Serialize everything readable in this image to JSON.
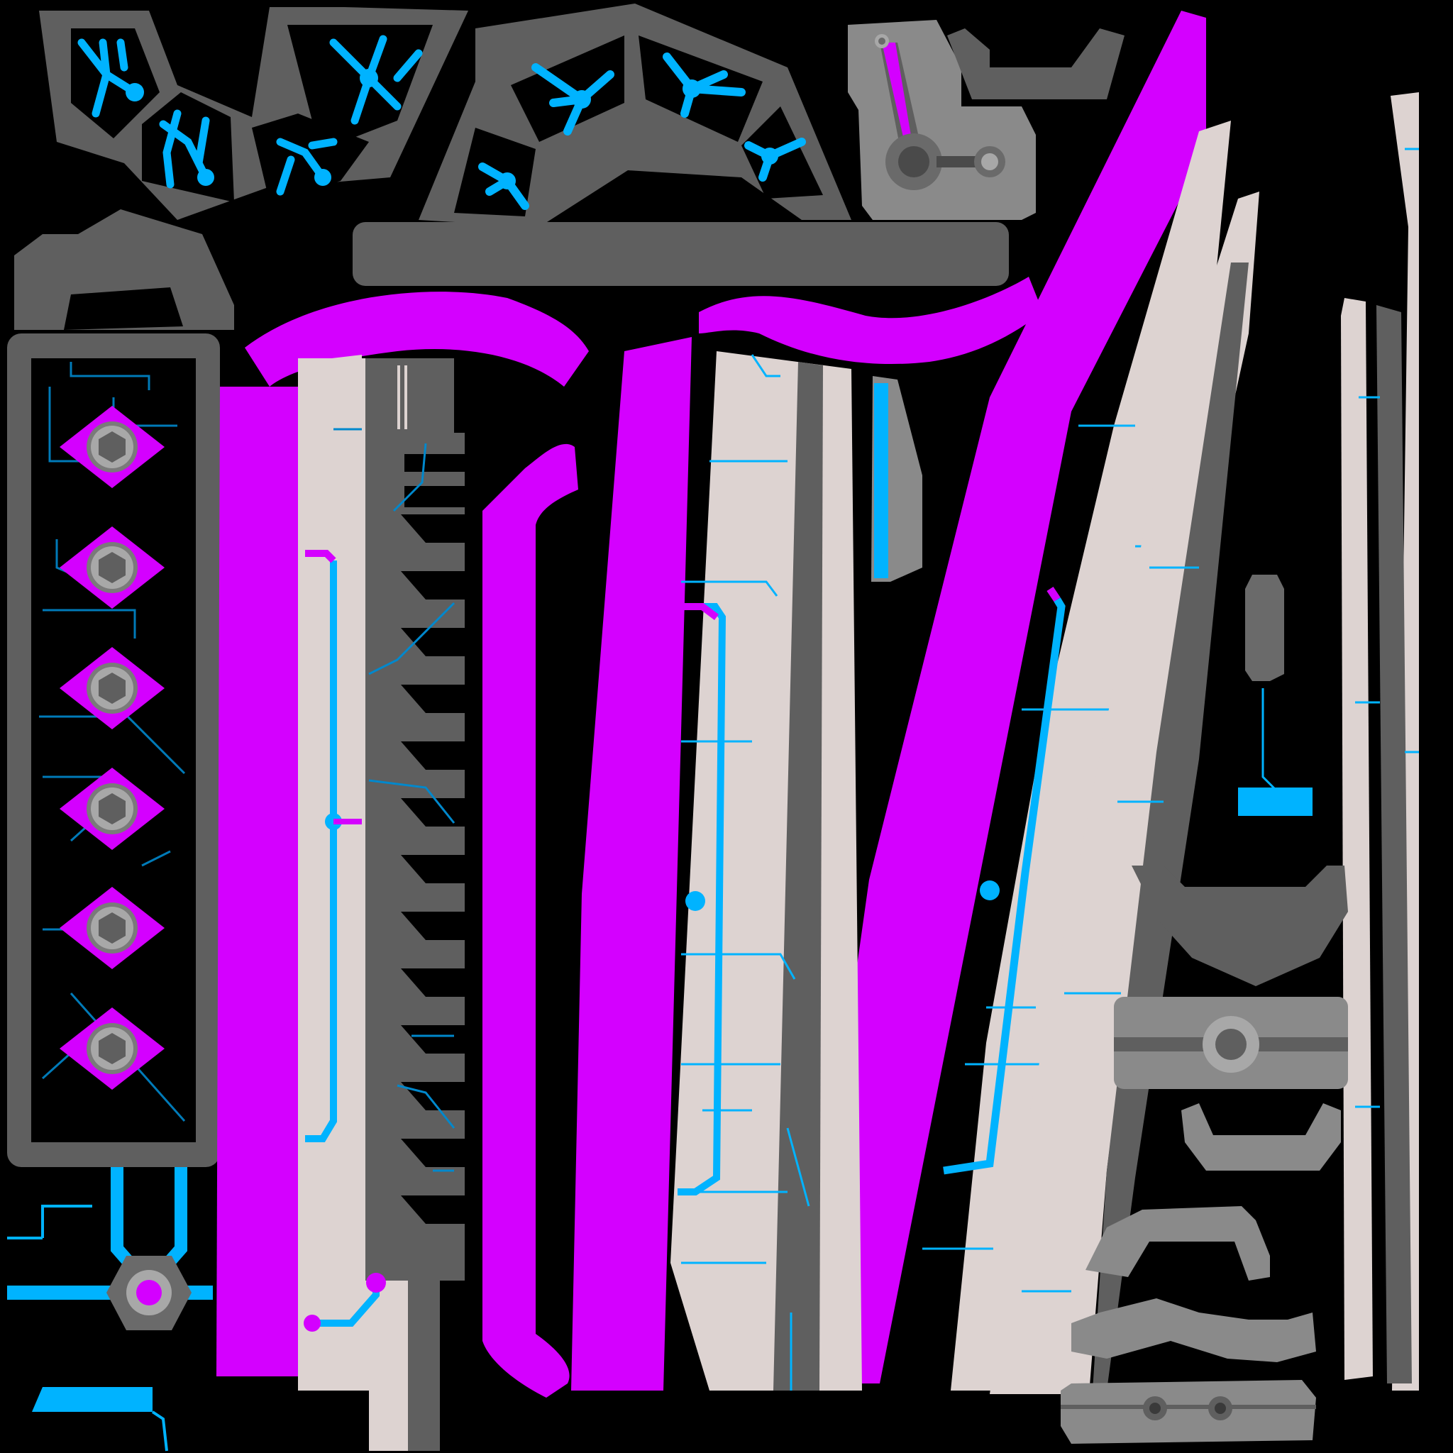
{
  "texture": {
    "kind": "uv-texture-atlas",
    "background": "#000000"
  },
  "palette": {
    "dark_gray": "#5f5f5f",
    "mid_gray": "#8a8a8a",
    "light_gray": "#a8a8a8",
    "bone": "#ddd3d1",
    "cyan": "#00b3ff",
    "magenta": "#d400ff"
  },
  "islands": [
    {
      "name": "bolt-panel",
      "count_bolts": 6
    },
    {
      "name": "fan-segment-left",
      "count_windows": 4
    },
    {
      "name": "fan-segment-right",
      "count_windows": 4
    },
    {
      "name": "hinge-plate"
    },
    {
      "name": "blade-long-left"
    },
    {
      "name": "blade-long-right"
    },
    {
      "name": "blade-curved-long"
    },
    {
      "name": "blade-curved-thin"
    },
    {
      "name": "strip-far-right"
    },
    {
      "name": "handle-parts"
    }
  ]
}
